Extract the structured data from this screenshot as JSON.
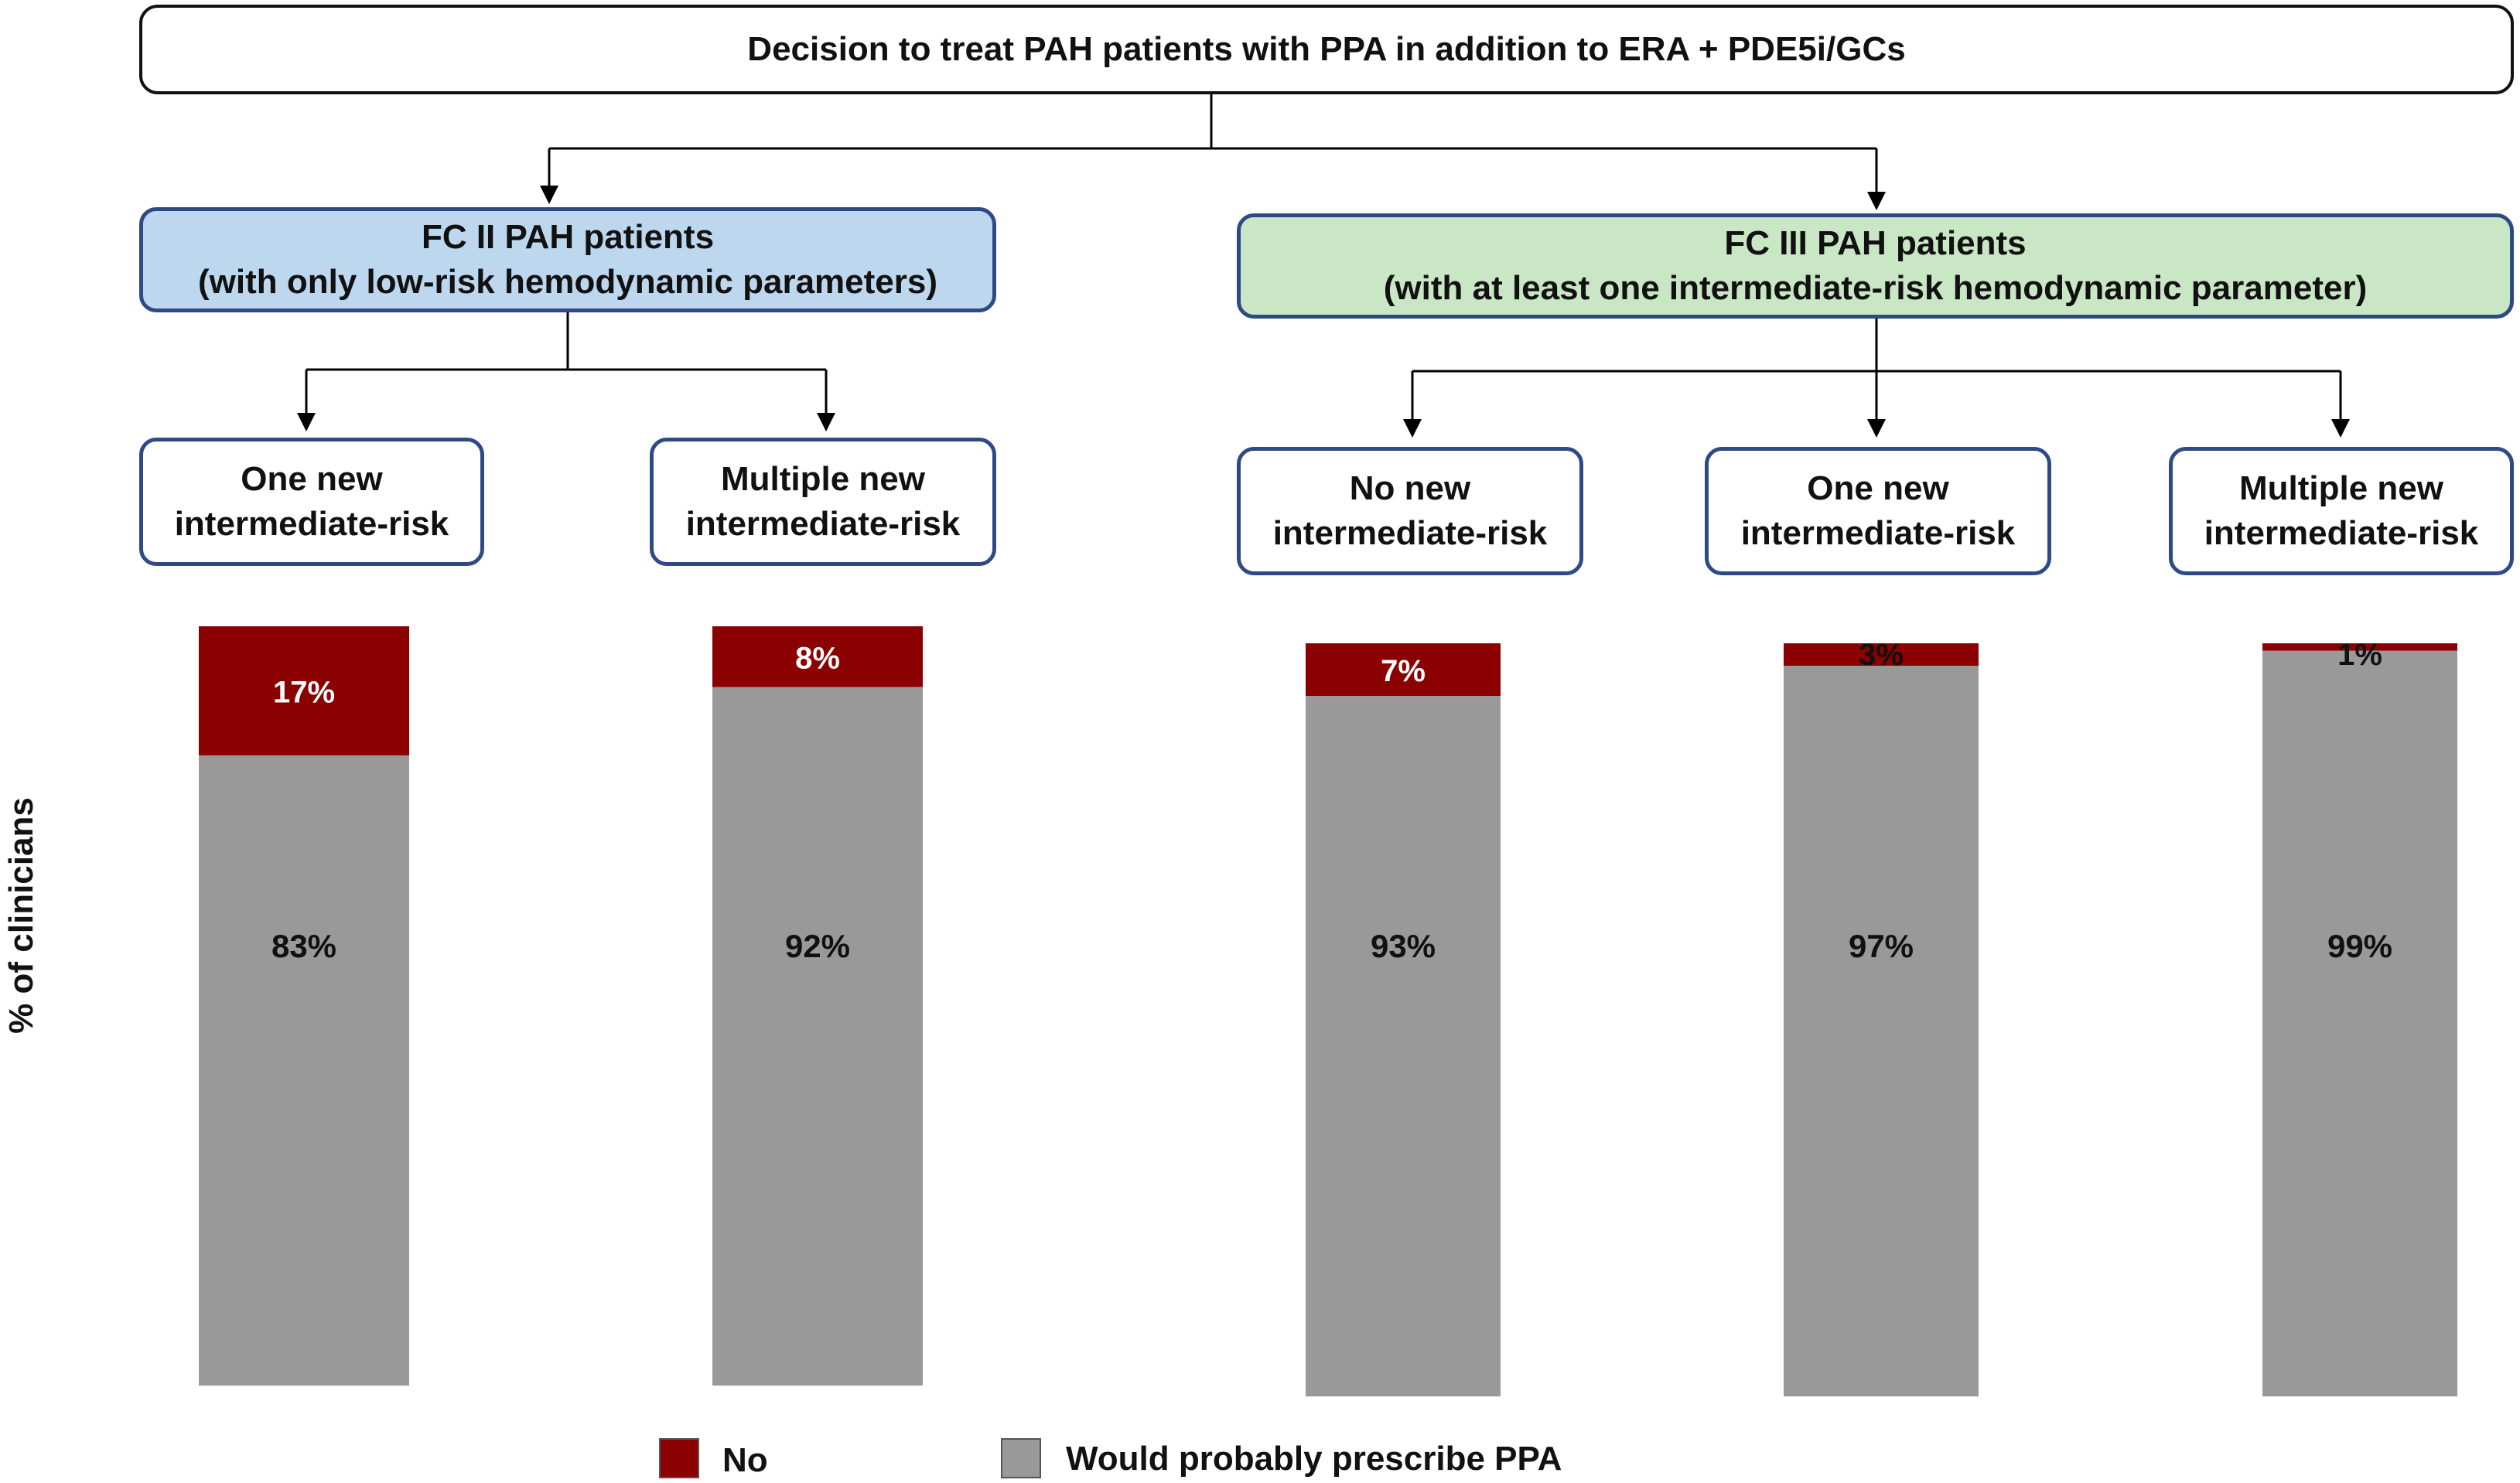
{
  "header": {
    "title": "Decision to treat PAH patients with PPA in addition to ERA + PDE5i/GCs"
  },
  "groups": [
    {
      "label": "FC II PAH patients\n(with only low-risk hemodynamic parameters)",
      "color": "#bdd7ee"
    },
    {
      "label": "FC III  PAH patients\n(with at least one intermediate-risk hemodynamic parameter)",
      "color": "#c9e7c4"
    }
  ],
  "subgroups": [
    {
      "label": "One new\nintermediate-risk"
    },
    {
      "label": "Multiple new\nintermediate-risk"
    },
    {
      "label": "No new\nintermediate-risk"
    },
    {
      "label": "One new\nintermediate-risk"
    },
    {
      "label": "Multiple new\nintermediate-risk"
    }
  ],
  "legend": {
    "no": "No",
    "ppa": "Would probably prescribe PPA"
  },
  "chart_data": {
    "type": "bar",
    "stacked": true,
    "ylabel": "% of clinicians",
    "categories": [
      "FC II: One new intermediate-risk",
      "FC II: Multiple new intermediate-risk",
      "FC III: No new intermediate-risk",
      "FC III: One new intermediate-risk",
      "FC III: Multiple new intermediate-risk"
    ],
    "series": [
      {
        "name": "Would probably prescribe PPA",
        "color": "#999999",
        "values": [
          83,
          92,
          93,
          97,
          99
        ],
        "labels": [
          "83%",
          "92%",
          "93%",
          "97%",
          "99%"
        ]
      },
      {
        "name": "No",
        "color": "#8b0000",
        "values": [
          17,
          8,
          7,
          3,
          1
        ],
        "labels": [
          "17%",
          "8%",
          "7%",
          "3%",
          "1%"
        ]
      }
    ],
    "ylim": [
      0,
      100
    ],
    "grid": false,
    "legend_position": "bottom"
  }
}
